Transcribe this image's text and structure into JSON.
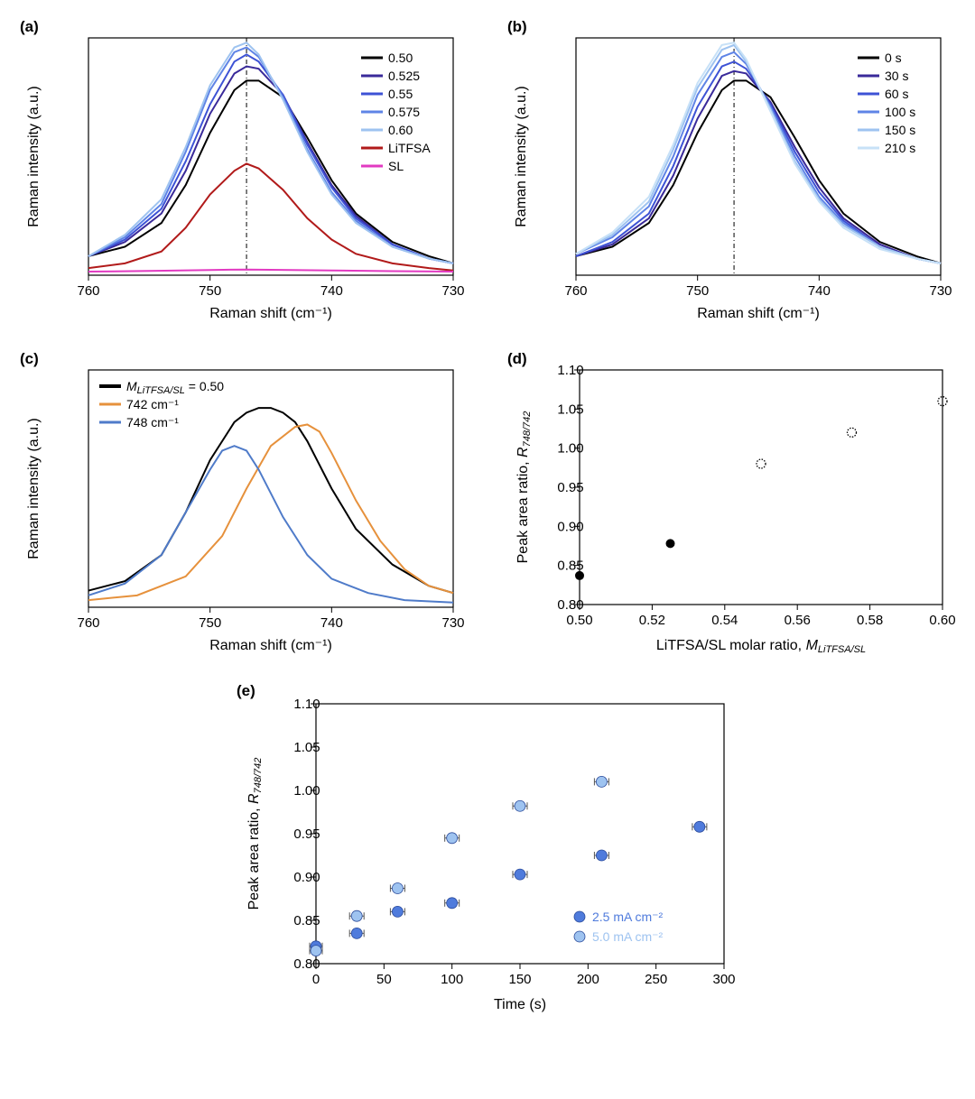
{
  "panel_a": {
    "label": "(a)",
    "type": "line",
    "xlabel": "Raman shift (cm⁻¹)",
    "ylabel": "Raman intensity (a.u.)",
    "xlim": [
      760,
      730
    ],
    "xticks": [
      760,
      750,
      740,
      730
    ],
    "axis_fontsize": 16,
    "tick_fontsize": 15,
    "legend_fontsize": 14,
    "line_width": 2,
    "xref": 747,
    "background_color": "#ffffff",
    "axis_color": "#000000",
    "series": [
      {
        "name": "0.50",
        "color": "#000000",
        "data": [
          [
            760,
            0.08
          ],
          [
            757,
            0.12
          ],
          [
            754,
            0.22
          ],
          [
            752,
            0.38
          ],
          [
            750,
            0.6
          ],
          [
            748,
            0.78
          ],
          [
            747,
            0.82
          ],
          [
            746,
            0.82
          ],
          [
            744,
            0.75
          ],
          [
            742,
            0.58
          ],
          [
            740,
            0.4
          ],
          [
            738,
            0.26
          ],
          [
            735,
            0.14
          ],
          [
            732,
            0.08
          ],
          [
            730,
            0.05
          ]
        ]
      },
      {
        "name": "0.525",
        "color": "#3a2a9a",
        "data": [
          [
            760,
            0.08
          ],
          [
            757,
            0.14
          ],
          [
            754,
            0.26
          ],
          [
            752,
            0.44
          ],
          [
            750,
            0.68
          ],
          [
            748,
            0.85
          ],
          [
            747,
            0.88
          ],
          [
            746,
            0.87
          ],
          [
            744,
            0.76
          ],
          [
            742,
            0.56
          ],
          [
            740,
            0.38
          ],
          [
            738,
            0.25
          ],
          [
            735,
            0.13
          ],
          [
            732,
            0.07
          ],
          [
            730,
            0.05
          ]
        ]
      },
      {
        "name": "0.55",
        "color": "#3d52d5",
        "data": [
          [
            760,
            0.08
          ],
          [
            757,
            0.15
          ],
          [
            754,
            0.28
          ],
          [
            752,
            0.48
          ],
          [
            750,
            0.72
          ],
          [
            748,
            0.9
          ],
          [
            747,
            0.93
          ],
          [
            746,
            0.9
          ],
          [
            744,
            0.76
          ],
          [
            742,
            0.55
          ],
          [
            740,
            0.37
          ],
          [
            738,
            0.24
          ],
          [
            735,
            0.13
          ],
          [
            732,
            0.07
          ],
          [
            730,
            0.05
          ]
        ]
      },
      {
        "name": "0.575",
        "color": "#5f84e6",
        "data": [
          [
            760,
            0.08
          ],
          [
            757,
            0.16
          ],
          [
            754,
            0.3
          ],
          [
            752,
            0.52
          ],
          [
            750,
            0.78
          ],
          [
            748,
            0.94
          ],
          [
            747,
            0.96
          ],
          [
            746,
            0.92
          ],
          [
            744,
            0.75
          ],
          [
            742,
            0.53
          ],
          [
            740,
            0.35
          ],
          [
            738,
            0.23
          ],
          [
            735,
            0.12
          ],
          [
            732,
            0.07
          ],
          [
            730,
            0.05
          ]
        ]
      },
      {
        "name": "0.60",
        "color": "#9ec3f0",
        "data": [
          [
            760,
            0.08
          ],
          [
            757,
            0.17
          ],
          [
            754,
            0.32
          ],
          [
            752,
            0.54
          ],
          [
            750,
            0.8
          ],
          [
            748,
            0.96
          ],
          [
            747,
            0.98
          ],
          [
            746,
            0.93
          ],
          [
            744,
            0.74
          ],
          [
            742,
            0.52
          ],
          [
            740,
            0.34
          ],
          [
            738,
            0.22
          ],
          [
            735,
            0.12
          ],
          [
            732,
            0.07
          ],
          [
            730,
            0.05
          ]
        ]
      },
      {
        "name": "LiTFSA",
        "color": "#b11a1a",
        "data": [
          [
            760,
            0.03
          ],
          [
            757,
            0.05
          ],
          [
            754,
            0.1
          ],
          [
            752,
            0.2
          ],
          [
            750,
            0.34
          ],
          [
            748,
            0.44
          ],
          [
            747,
            0.47
          ],
          [
            746,
            0.45
          ],
          [
            744,
            0.36
          ],
          [
            742,
            0.24
          ],
          [
            740,
            0.15
          ],
          [
            738,
            0.09
          ],
          [
            735,
            0.05
          ],
          [
            732,
            0.03
          ],
          [
            730,
            0.02
          ]
        ]
      },
      {
        "name": "SL",
        "color": "#e23ac1",
        "data": [
          [
            760,
            0.015
          ],
          [
            755,
            0.018
          ],
          [
            750,
            0.022
          ],
          [
            747,
            0.024
          ],
          [
            745,
            0.023
          ],
          [
            740,
            0.02
          ],
          [
            735,
            0.017
          ],
          [
            730,
            0.015
          ]
        ]
      }
    ]
  },
  "panel_b": {
    "label": "(b)",
    "type": "line",
    "xlabel": "Raman shift (cm⁻¹)",
    "ylabel": "Raman intensity (a.u.)",
    "xlim": [
      760,
      730
    ],
    "xticks": [
      760,
      750,
      740,
      730
    ],
    "xref": 747,
    "series": [
      {
        "name": "0 s",
        "color": "#000000",
        "data": [
          [
            760,
            0.08
          ],
          [
            757,
            0.12
          ],
          [
            754,
            0.22
          ],
          [
            752,
            0.38
          ],
          [
            750,
            0.6
          ],
          [
            748,
            0.78
          ],
          [
            747,
            0.82
          ],
          [
            746,
            0.82
          ],
          [
            744,
            0.75
          ],
          [
            742,
            0.58
          ],
          [
            740,
            0.4
          ],
          [
            738,
            0.26
          ],
          [
            735,
            0.14
          ],
          [
            732,
            0.08
          ],
          [
            730,
            0.05
          ]
        ]
      },
      {
        "name": "30 s",
        "color": "#3a2a9a",
        "data": [
          [
            760,
            0.08
          ],
          [
            757,
            0.13
          ],
          [
            754,
            0.24
          ],
          [
            752,
            0.42
          ],
          [
            750,
            0.66
          ],
          [
            748,
            0.84
          ],
          [
            747,
            0.86
          ],
          [
            746,
            0.85
          ],
          [
            744,
            0.73
          ],
          [
            742,
            0.54
          ],
          [
            740,
            0.37
          ],
          [
            738,
            0.24
          ],
          [
            735,
            0.13
          ],
          [
            732,
            0.07
          ],
          [
            730,
            0.05
          ]
        ]
      },
      {
        "name": "60 s",
        "color": "#3d52d5",
        "data": [
          [
            760,
            0.08
          ],
          [
            757,
            0.14
          ],
          [
            754,
            0.26
          ],
          [
            752,
            0.46
          ],
          [
            750,
            0.71
          ],
          [
            748,
            0.88
          ],
          [
            747,
            0.9
          ],
          [
            746,
            0.87
          ],
          [
            744,
            0.72
          ],
          [
            742,
            0.52
          ],
          [
            740,
            0.35
          ],
          [
            738,
            0.23
          ],
          [
            735,
            0.12
          ],
          [
            732,
            0.07
          ],
          [
            730,
            0.05
          ]
        ]
      },
      {
        "name": "100 s",
        "color": "#5f84e6",
        "data": [
          [
            760,
            0.09
          ],
          [
            757,
            0.16
          ],
          [
            754,
            0.29
          ],
          [
            752,
            0.5
          ],
          [
            750,
            0.76
          ],
          [
            748,
            0.92
          ],
          [
            747,
            0.94
          ],
          [
            746,
            0.89
          ],
          [
            744,
            0.71
          ],
          [
            742,
            0.5
          ],
          [
            740,
            0.33
          ],
          [
            738,
            0.22
          ],
          [
            735,
            0.12
          ],
          [
            732,
            0.07
          ],
          [
            730,
            0.05
          ]
        ]
      },
      {
        "name": "150 s",
        "color": "#9ec3f0",
        "data": [
          [
            760,
            0.09
          ],
          [
            757,
            0.17
          ],
          [
            754,
            0.31
          ],
          [
            752,
            0.53
          ],
          [
            750,
            0.79
          ],
          [
            748,
            0.95
          ],
          [
            747,
            0.97
          ],
          [
            746,
            0.9
          ],
          [
            744,
            0.7
          ],
          [
            742,
            0.48
          ],
          [
            740,
            0.32
          ],
          [
            738,
            0.21
          ],
          [
            735,
            0.12
          ],
          [
            732,
            0.07
          ],
          [
            730,
            0.05
          ]
        ]
      },
      {
        "name": "210 s",
        "color": "#c7e1f7",
        "data": [
          [
            760,
            0.09
          ],
          [
            757,
            0.18
          ],
          [
            754,
            0.33
          ],
          [
            752,
            0.55
          ],
          [
            750,
            0.81
          ],
          [
            748,
            0.97
          ],
          [
            747,
            0.98
          ],
          [
            746,
            0.91
          ],
          [
            744,
            0.69
          ],
          [
            742,
            0.47
          ],
          [
            740,
            0.31
          ],
          [
            738,
            0.2
          ],
          [
            735,
            0.11
          ],
          [
            732,
            0.07
          ],
          [
            730,
            0.05
          ]
        ]
      }
    ]
  },
  "panel_c": {
    "label": "(c)",
    "type": "line",
    "xlabel": "Raman shift (cm⁻¹)",
    "ylabel": "Raman intensity (a.u.)",
    "xlim": [
      760,
      730
    ],
    "xticks": [
      760,
      750,
      740,
      730
    ],
    "series": [
      {
        "name": "M_LiTFSA/SL = 0.50",
        "color": "#000000",
        "width": 3,
        "data": [
          [
            760,
            0.07
          ],
          [
            757,
            0.11
          ],
          [
            754,
            0.22
          ],
          [
            752,
            0.4
          ],
          [
            750,
            0.62
          ],
          [
            748,
            0.78
          ],
          [
            747,
            0.82
          ],
          [
            746,
            0.84
          ],
          [
            745,
            0.84
          ],
          [
            744,
            0.82
          ],
          [
            743,
            0.78
          ],
          [
            742,
            0.7
          ],
          [
            740,
            0.5
          ],
          [
            738,
            0.33
          ],
          [
            735,
            0.18
          ],
          [
            732,
            0.09
          ],
          [
            730,
            0.06
          ]
        ]
      },
      {
        "name": "742 cm⁻¹",
        "color": "#e6913c",
        "width": 2,
        "data": [
          [
            760,
            0.03
          ],
          [
            756,
            0.05
          ],
          [
            752,
            0.13
          ],
          [
            749,
            0.3
          ],
          [
            747,
            0.5
          ],
          [
            745,
            0.68
          ],
          [
            743,
            0.76
          ],
          [
            742,
            0.77
          ],
          [
            741,
            0.74
          ],
          [
            740,
            0.65
          ],
          [
            738,
            0.45
          ],
          [
            736,
            0.28
          ],
          [
            734,
            0.16
          ],
          [
            732,
            0.09
          ],
          [
            730,
            0.06
          ]
        ]
      },
      {
        "name": "748 cm⁻¹",
        "color": "#4f7bc9",
        "width": 2,
        "data": [
          [
            760,
            0.05
          ],
          [
            757,
            0.1
          ],
          [
            754,
            0.22
          ],
          [
            752,
            0.4
          ],
          [
            750,
            0.58
          ],
          [
            749,
            0.66
          ],
          [
            748,
            0.68
          ],
          [
            747,
            0.66
          ],
          [
            746,
            0.58
          ],
          [
            744,
            0.38
          ],
          [
            742,
            0.22
          ],
          [
            740,
            0.12
          ],
          [
            737,
            0.06
          ],
          [
            734,
            0.03
          ],
          [
            730,
            0.02
          ]
        ]
      }
    ],
    "legend_header_html": "<tspan font-style='italic'>M</tspan><tspan font-style='italic' font-size='11' dy='3'>LiTFSA/SL</tspan><tspan dy='-3'> = 0.50</tspan>"
  },
  "panel_d": {
    "label": "(d)",
    "type": "scatter",
    "xlabel_html": "LiTFSA/SL molar ratio, <tspan font-style='italic'>M</tspan><tspan font-style='italic' font-size='11' dy='3'>LiTFSA/SL</tspan>",
    "ylabel_html": "Peak area ratio, <tspan font-style='italic'>R</tspan><tspan font-style='italic' font-size='11' dy='3'>748/742</tspan>",
    "xlim": [
      0.5,
      0.6
    ],
    "ylim": [
      0.8,
      1.1
    ],
    "xticks": [
      0.5,
      0.52,
      0.54,
      0.56,
      0.58,
      0.6
    ],
    "yticks": [
      0.8,
      0.85,
      0.9,
      0.95,
      1.0,
      1.05,
      1.1
    ],
    "marker_size": 5,
    "points_filled": [
      {
        "x": 0.5,
        "y": 0.837
      },
      {
        "x": 0.525,
        "y": 0.878
      }
    ],
    "points_open": [
      {
        "x": 0.55,
        "y": 0.98
      },
      {
        "x": 0.575,
        "y": 1.02
      },
      {
        "x": 0.6,
        "y": 1.06
      }
    ],
    "filled_color": "#000000",
    "open_stroke": "#000000",
    "open_dash": "1.5 1.5"
  },
  "panel_e": {
    "label": "(e)",
    "type": "scatter",
    "xlabel": "Time (s)",
    "ylabel_html": "Peak area ratio, <tspan font-style='italic'>R</tspan><tspan font-style='italic' font-size='11' dy='3'>748/742</tspan>",
    "xlim": [
      0,
      300
    ],
    "ylim": [
      0.8,
      1.1
    ],
    "xticks": [
      0,
      50,
      100,
      150,
      200,
      250,
      300
    ],
    "yticks": [
      0.8,
      0.85,
      0.9,
      0.95,
      1.0,
      1.05,
      1.1
    ],
    "marker_size": 6,
    "series": [
      {
        "name": "2.5 mA cm⁻²",
        "color": "#4f7bdc",
        "points": [
          {
            "x": 0,
            "y": 0.82,
            "ex": 7
          },
          {
            "x": 30,
            "y": 0.835,
            "ex": 8
          },
          {
            "x": 60,
            "y": 0.86,
            "ex": 8
          },
          {
            "x": 100,
            "y": 0.87,
            "ex": 8
          },
          {
            "x": 150,
            "y": 0.903,
            "ex": 8
          },
          {
            "x": 210,
            "y": 0.925,
            "ex": 8
          },
          {
            "x": 282,
            "y": 0.958,
            "ex": 8
          }
        ]
      },
      {
        "name": "5.0 mA cm⁻²",
        "color": "#9ec3f0",
        "points": [
          {
            "x": 0,
            "y": 0.815,
            "ex": 7
          },
          {
            "x": 30,
            "y": 0.855,
            "ex": 8
          },
          {
            "x": 60,
            "y": 0.887,
            "ex": 8
          },
          {
            "x": 100,
            "y": 0.945,
            "ex": 8
          },
          {
            "x": 150,
            "y": 0.982,
            "ex": 8
          },
          {
            "x": 210,
            "y": 1.01,
            "ex": 8
          }
        ]
      }
    ]
  }
}
